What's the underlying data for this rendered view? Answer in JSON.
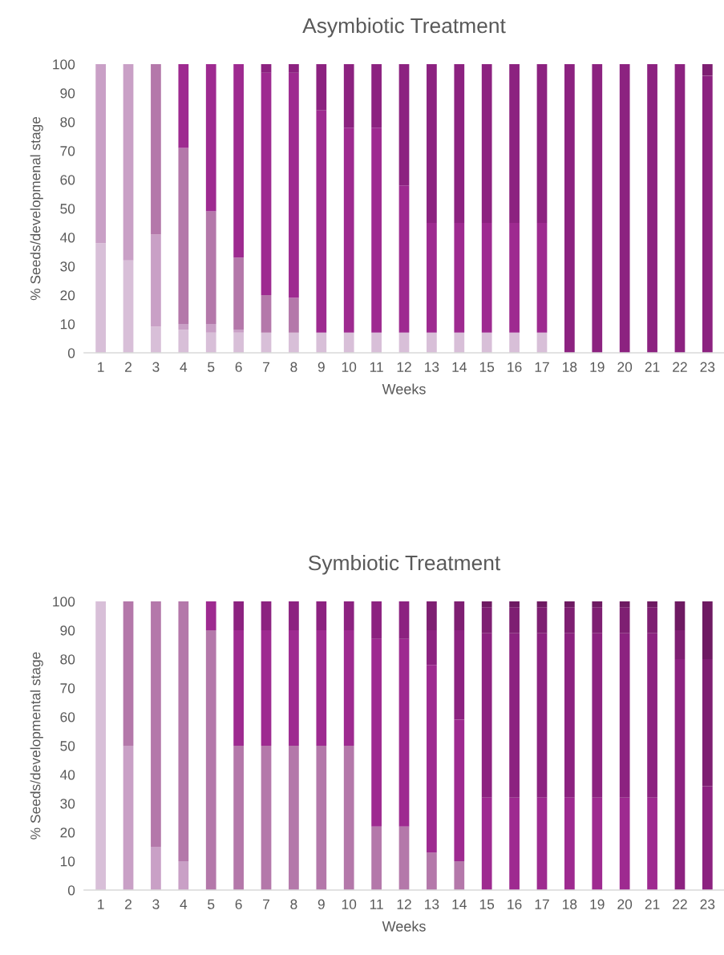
{
  "chart_data": [
    {
      "type": "bar",
      "stacked": true,
      "title": "Asymbiotic Treatment",
      "xlabel": "Weeks",
      "ylabel": "% Seeds/developmenal stage",
      "categories": [
        "1",
        "2",
        "3",
        "4",
        "5",
        "6",
        "7",
        "8",
        "9",
        "10",
        "11",
        "12",
        "13",
        "14",
        "15",
        "16",
        "17",
        "18",
        "19",
        "20",
        "21",
        "22",
        "23"
      ],
      "ylim": [
        0,
        100
      ],
      "yticks": [
        0,
        10,
        20,
        30,
        40,
        50,
        60,
        70,
        80,
        90,
        100
      ],
      "grid": false,
      "series": [
        {
          "color": "#d8bfd8",
          "values": [
            38,
            32,
            9,
            8,
            7,
            7,
            7,
            7,
            7,
            7,
            7,
            7,
            7,
            7,
            7,
            7,
            7,
            0,
            0,
            0,
            0,
            0,
            0
          ]
        },
        {
          "color": "#c9a0c6",
          "values": [
            62,
            68,
            32,
            2,
            3,
            1,
            0,
            0,
            0,
            0,
            0,
            0,
            0,
            0,
            0,
            0,
            0,
            0,
            0,
            0,
            0,
            0,
            0
          ]
        },
        {
          "color": "#b478aa",
          "values": [
            0,
            0,
            59,
            61,
            39,
            25,
            13,
            12,
            0,
            0,
            0,
            0,
            0,
            0,
            0,
            0,
            0,
            0,
            0,
            0,
            0,
            0,
            0
          ]
        },
        {
          "color": "#9e2a90",
          "values": [
            0,
            0,
            0,
            29,
            51,
            67,
            77,
            78,
            77,
            71,
            71,
            51,
            38,
            38,
            38,
            38,
            38,
            0,
            0,
            0,
            0,
            0,
            0
          ]
        },
        {
          "color": "#8c2280",
          "values": [
            0,
            0,
            0,
            0,
            0,
            0,
            3,
            3,
            16,
            22,
            22,
            42,
            55,
            55,
            55,
            55,
            55,
            100,
            100,
            100,
            100,
            100,
            96
          ]
        },
        {
          "color": "#7e1f72",
          "values": [
            0,
            0,
            0,
            0,
            0,
            0,
            0,
            0,
            0,
            0,
            0,
            0,
            0,
            0,
            0,
            0,
            0,
            0,
            0,
            0,
            0,
            0,
            4
          ]
        }
      ]
    },
    {
      "type": "bar",
      "stacked": true,
      "title": "Symbiotic Treatment",
      "xlabel": "Weeks",
      "ylabel": "% Seeds/developmental stage",
      "categories": [
        "1",
        "2",
        "3",
        "4",
        "5",
        "6",
        "7",
        "8",
        "9",
        "10",
        "11",
        "12",
        "13",
        "14",
        "15",
        "16",
        "17",
        "18",
        "19",
        "20",
        "21",
        "22",
        "23"
      ],
      "ylim": [
        0,
        100
      ],
      "yticks": [
        0,
        10,
        20,
        30,
        40,
        50,
        60,
        70,
        80,
        90,
        100
      ],
      "grid": false,
      "series": [
        {
          "color": "#d8bfd8",
          "values": [
            100,
            0,
            0,
            0,
            0,
            0,
            0,
            0,
            0,
            0,
            0,
            0,
            0,
            0,
            0,
            0,
            0,
            0,
            0,
            0,
            0,
            0,
            0
          ]
        },
        {
          "color": "#c9a0c6",
          "values": [
            0,
            50,
            15,
            10,
            0,
            0,
            0,
            0,
            0,
            0,
            0,
            0,
            0,
            0,
            0,
            0,
            0,
            0,
            0,
            0,
            0,
            0,
            0
          ]
        },
        {
          "color": "#b478aa",
          "values": [
            0,
            50,
            85,
            90,
            90,
            50,
            50,
            50,
            50,
            50,
            22,
            22,
            13,
            10,
            0,
            0,
            0,
            0,
            0,
            0,
            0,
            0,
            0
          ]
        },
        {
          "color": "#9e2a90",
          "values": [
            0,
            0,
            0,
            0,
            10,
            40,
            40,
            40,
            40,
            40,
            65,
            65,
            65,
            49,
            32,
            32,
            32,
            32,
            32,
            32,
            32,
            0,
            0
          ]
        },
        {
          "color": "#8c2280",
          "values": [
            0,
            0,
            0,
            0,
            0,
            10,
            10,
            10,
            10,
            10,
            13,
            13,
            12,
            31,
            57,
            57,
            57,
            57,
            57,
            57,
            57,
            80,
            36
          ]
        },
        {
          "color": "#7e1f72",
          "values": [
            0,
            0,
            0,
            0,
            0,
            0,
            0,
            0,
            0,
            0,
            0,
            0,
            10,
            10,
            9,
            9,
            9,
            9,
            9,
            9,
            9,
            10,
            44
          ]
        },
        {
          "color": "#6e1a62",
          "values": [
            0,
            0,
            0,
            0,
            0,
            0,
            0,
            0,
            0,
            0,
            0,
            0,
            0,
            0,
            2,
            2,
            2,
            2,
            2,
            2,
            2,
            10,
            20
          ]
        }
      ]
    }
  ]
}
